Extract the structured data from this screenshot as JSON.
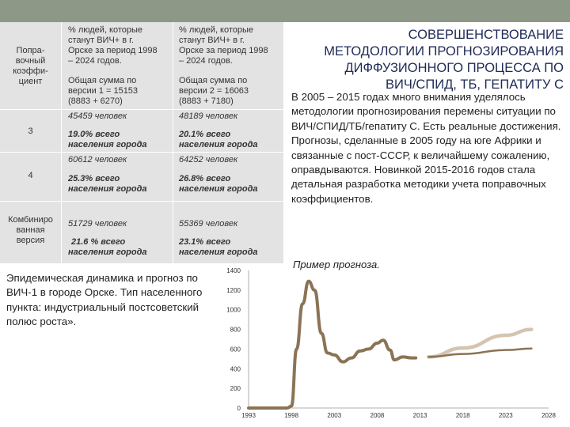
{
  "table": {
    "col1_header": "Поправочный коэффициент",
    "col1_header_lines": [
      "Попра-",
      "вочный",
      "коэффи-",
      "циент"
    ],
    "col2_header": [
      "% людей, которые",
      "станут ВИЧ+ в г.",
      "Орске за период 1998",
      "– 2024 годов."
    ],
    "col3_header": [
      "% людей, которые",
      "станут ВИЧ+ в г.",
      "Орске за период 1998",
      "– 2024 годов."
    ],
    "col2_sum": [
      "Общая сумма по",
      "версии 1 = 15153",
      "(8883 + 6270)"
    ],
    "col3_sum": [
      "Общая сумма по",
      "версии 2 = 16063",
      "(8883 + 7180)"
    ],
    "row3": {
      "label": "3",
      "v1_count": "45459 человек",
      "v1_pct": [
        "19.0% всего",
        "населения города"
      ],
      "v2_count": "48189 человек",
      "v2_pct": [
        "20.1% всего",
        "населения города"
      ]
    },
    "row4": {
      "label": "4",
      "v1_count": "60612 человек",
      "v1_pct": [
        "25.3% всего",
        "населения города"
      ],
      "v2_count": "64252 человек",
      "v2_pct": [
        "26.8% всего",
        "населения города"
      ]
    },
    "row_comb": {
      "label_lines": [
        "Комбиниро",
        "ванная",
        "версия"
      ],
      "v1_count": "51729 человек",
      "v1_pct": [
        "21.6 % всего",
        "населения города"
      ],
      "v2_count": "55369 человек",
      "v2_pct": [
        "23.1% всего",
        "населения города"
      ]
    }
  },
  "title_lines": [
    "СОВЕРШЕНСТВОВАНИЕ",
    "МЕТОДОЛОГИИ ПРОГНОЗИРОВАНИЯ",
    "ДИФФУЗИОННОГО ПРОЦЕССА ПО",
    "ВИЧ/СПИД, ТБ, ГЕПАТИТУ С"
  ],
  "paragraph": "В 2005 – 2015 годах много внимания уделялось методологии прогнозирования перемены ситуации по ВИЧ/СПИД/ТБ/гепатиту С. Есть реальные достижения. Прогнозы, сделанные в 2005 году на юге Африки и связанные с пост-СССР, к величайшему сожалению, оправдываются. Новинкой 2015-2016 годов стала детальная разработка методики учета поправочных коэффициентов.",
  "note": "Эпидемическая динамика и прогноз по ВИЧ-1 в городе Орске. Тип населенного пункта: индустриальный постсоветский полюс роста».",
  "example_label": "Пример прогноза.",
  "colors": {
    "topbar": "#8e9886",
    "table_bg": "#e3e3e3",
    "series_dark": "#8b7355",
    "series_light": "#d4c4b0"
  },
  "chart_data": {
    "type": "line",
    "x_ticks": [
      "1993",
      "1998",
      "2003",
      "2008",
      "2013",
      "2018",
      "2023",
      "2028"
    ],
    "y_ticks": [
      "0",
      "200",
      "400",
      "600",
      "800",
      "1000",
      "1200",
      "1400"
    ],
    "xlim": [
      1993,
      2028
    ],
    "ylim": [
      0,
      1400
    ],
    "series": [
      {
        "values": [
          [
            1993,
            0
          ],
          [
            1997.5,
            0
          ],
          [
            1998,
            20
          ],
          [
            1998.6,
            600
          ],
          [
            1999.3,
            1060
          ],
          [
            2000,
            1290
          ],
          [
            2000.7,
            1200
          ],
          [
            2001.5,
            760
          ],
          [
            2002.2,
            560
          ],
          [
            2003,
            540
          ],
          [
            2004,
            470
          ],
          [
            2005,
            510
          ],
          [
            2006,
            580
          ],
          [
            2007,
            600
          ],
          [
            2008,
            660
          ],
          [
            2008.7,
            690
          ],
          [
            2009.5,
            590
          ],
          [
            2010,
            490
          ],
          [
            2011,
            520
          ],
          [
            2012,
            510
          ],
          [
            2012.5,
            510
          ]
        ]
      },
      {
        "values": [
          [
            2014,
            520
          ],
          [
            2018,
            550
          ],
          [
            2023,
            590
          ],
          [
            2026,
            605
          ]
        ]
      },
      {
        "values": [
          [
            2014,
            520
          ],
          [
            2018,
            610
          ],
          [
            2023,
            740
          ],
          [
            2026,
            800
          ]
        ]
      }
    ]
  }
}
